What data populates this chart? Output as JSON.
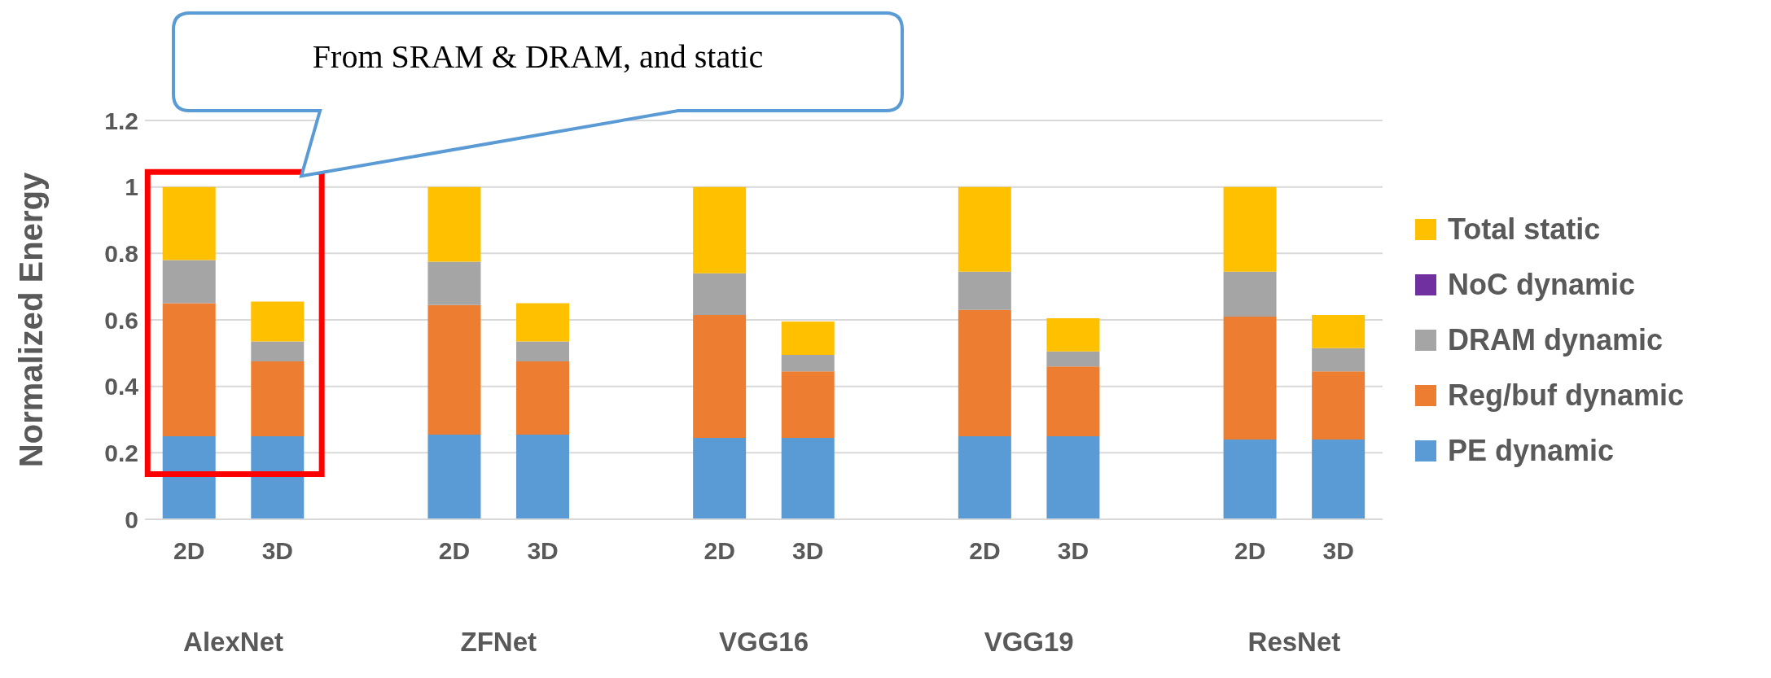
{
  "chart_data": {
    "type": "bar",
    "stacked": true,
    "ylabel": "Normalized Energy",
    "categories": [
      "2D",
      "3D",
      null,
      "2D",
      "3D",
      null,
      "2D",
      "3D",
      null,
      "2D",
      "3D",
      null,
      "2D",
      "3D"
    ],
    "series": [
      {
        "name": "PE dynamic",
        "color": "#5b9bd5",
        "values": [
          0.25,
          0.25,
          null,
          0.255,
          0.255,
          null,
          0.245,
          0.245,
          null,
          0.25,
          0.25,
          null,
          0.24,
          0.24
        ]
      },
      {
        "name": "Reg/buf dynamic",
        "color": "#ed7d31",
        "values": [
          0.4,
          0.225,
          null,
          0.39,
          0.22,
          null,
          0.37,
          0.2,
          null,
          0.38,
          0.21,
          null,
          0.37,
          0.205
        ]
      },
      {
        "name": "DRAM dynamic",
        "color": "#a5a5a5",
        "values": [
          0.13,
          0.06,
          null,
          0.13,
          0.06,
          null,
          0.125,
          0.05,
          null,
          0.115,
          0.045,
          null,
          0.135,
          0.07
        ]
      },
      {
        "name": "NoC dynamic",
        "color": "#7030a0",
        "values": [
          0,
          0,
          null,
          0,
          0,
          null,
          0,
          0,
          null,
          0,
          0,
          null,
          0,
          0
        ]
      },
      {
        "name": "Total static",
        "color": "#ffc000",
        "values": [
          0.22,
          0.12,
          null,
          0.225,
          0.115,
          null,
          0.26,
          0.1,
          null,
          0.255,
          0.1,
          null,
          0.255,
          0.1
        ]
      }
    ],
    "ylim": [
      0,
      1.2
    ],
    "yticks": [
      0,
      0.2,
      0.4,
      0.6,
      0.8,
      1,
      1.2
    ],
    "grid": "y",
    "legend": "right",
    "annotations": [
      "From SRAM & DRAM, and static",
      "AlexNet",
      "ZFNet",
      "VGG16",
      "VGG19",
      "ResNet"
    ]
  }
}
